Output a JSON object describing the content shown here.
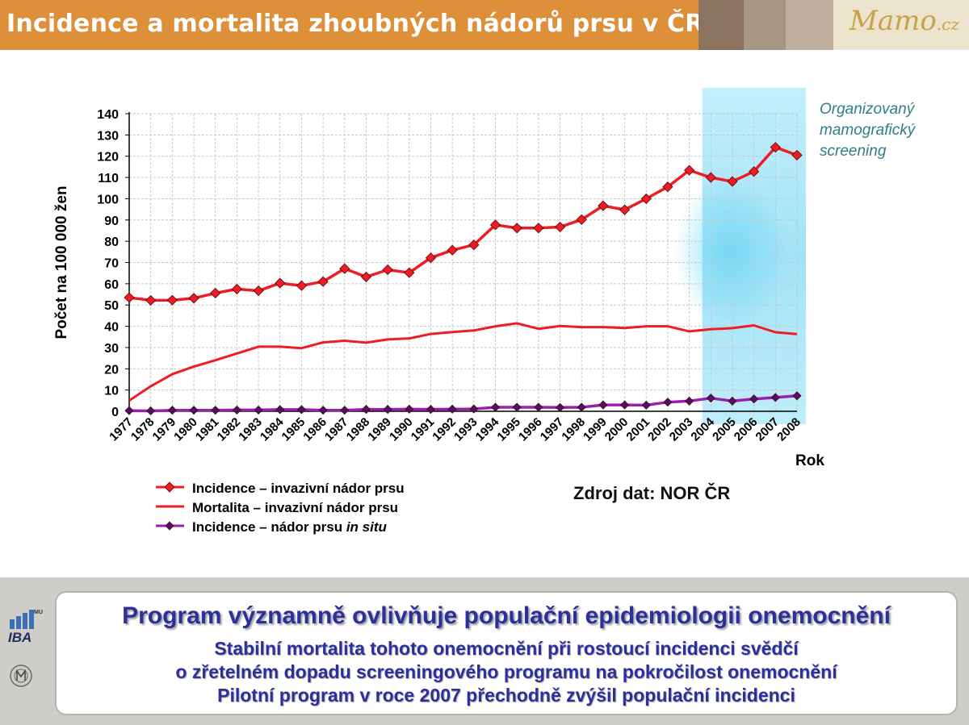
{
  "header": {
    "title": "Incidence a mortalita zhoubných nádorů prsu v ČR",
    "logo_text": "Mamo",
    "logo_suffix": ".cz"
  },
  "colors": {
    "header_orange": "#de8f3a",
    "swatches": [
      "#8c735f",
      "#a69683",
      "#bfad9e"
    ],
    "incidence_line": "#ee1c24",
    "insitu_line": "#9b1fae",
    "insitu_marker": "#4f0f6e",
    "screening_band": "#a7e6f9",
    "note_text": "#2f7d86",
    "message_text": "#2c2f9c"
  },
  "chart_data": {
    "type": "line",
    "ylabel": "Počet  na 100 000 žen",
    "xlabel": "Rok",
    "ylim": [
      0,
      140
    ],
    "yticks": [
      0,
      10,
      20,
      30,
      40,
      50,
      60,
      70,
      80,
      90,
      100,
      110,
      120,
      130,
      140
    ],
    "grid": true,
    "x": [
      "1977",
      "1978",
      "1979",
      "1980",
      "1981",
      "1982",
      "1983",
      "1984",
      "1985",
      "1986",
      "1987",
      "1988",
      "1989",
      "1990",
      "1991",
      "1992",
      "1993",
      "1994",
      "1995",
      "1996",
      "1997",
      "1998",
      "1999",
      "2000",
      "2001",
      "2002",
      "2003",
      "2004",
      "2005",
      "2006",
      "2007",
      "2008"
    ],
    "series": [
      {
        "name": "Incidence – invazivní nádor prsu",
        "marker": "diamond",
        "values": [
          53.5,
          52.2,
          52.3,
          53.2,
          55.6,
          57.5,
          56.7,
          60.3,
          59.1,
          61.0,
          67.1,
          63.2,
          66.6,
          65.2,
          72.2,
          75.8,
          78.3,
          87.7,
          86.2,
          86.2,
          86.7,
          90.2,
          96.7,
          94.8,
          100.0,
          105.6,
          113.4,
          110.0,
          108.1,
          112.8,
          124.2,
          120.5
        ]
      },
      {
        "name": "Mortalita – invazivní nádor prsu",
        "marker": "none",
        "values": [
          5.0,
          11.8,
          17.5,
          21.0,
          24.0,
          27.2,
          30.4,
          30.4,
          29.7,
          32.4,
          33.2,
          32.3,
          33.8,
          34.3,
          36.4,
          37.3,
          38.0,
          40.0,
          41.4,
          38.8,
          40.1,
          39.6,
          39.6,
          39.2,
          40.0,
          40.0,
          37.6,
          38.6,
          39.1,
          40.4,
          37.2,
          36.3
        ]
      },
      {
        "name": "Incidence – nádor prsu in situ",
        "marker": "diamond",
        "values": [
          0.3,
          0.2,
          0.5,
          0.5,
          0.5,
          0.6,
          0.6,
          0.8,
          0.8,
          0.5,
          0.5,
          0.9,
          0.9,
          1.0,
          0.9,
          1.0,
          1.1,
          1.9,
          1.9,
          1.9,
          1.8,
          1.9,
          3.0,
          3.0,
          2.9,
          4.3,
          4.8,
          6.2,
          4.8,
          5.8,
          6.5,
          7.3
        ]
      }
    ],
    "legend": {
      "placement": "bottom-left",
      "items": [
        {
          "prefix": "Incidence – invazivní nádor prsu",
          "italic": ""
        },
        {
          "prefix": "Mortalita – invazivní nádor prsu",
          "italic": ""
        },
        {
          "prefix": "Incidence – nádor prsu ",
          "italic": "in situ"
        }
      ]
    },
    "screening_band": {
      "from": "2003",
      "to": "2008"
    },
    "annotation": [
      "Organizovaný",
      "mamografický",
      "screening"
    ],
    "source": "Zdroj dat: NOR ČR"
  },
  "footer": {
    "logo_label": "IBA",
    "logo_badge": "MU",
    "main": "Program významně ovlivňuje populační epidemiologii onemocnění",
    "lines": [
      "Stabilní mortalita tohoto onemocnění při rostoucí incidenci svědčí",
      "o zřetelném dopadu screeningového programu na pokročilost onemocnění",
      "Pilotní program v roce 2007 přechodně zvýšil populační incidenci"
    ]
  }
}
